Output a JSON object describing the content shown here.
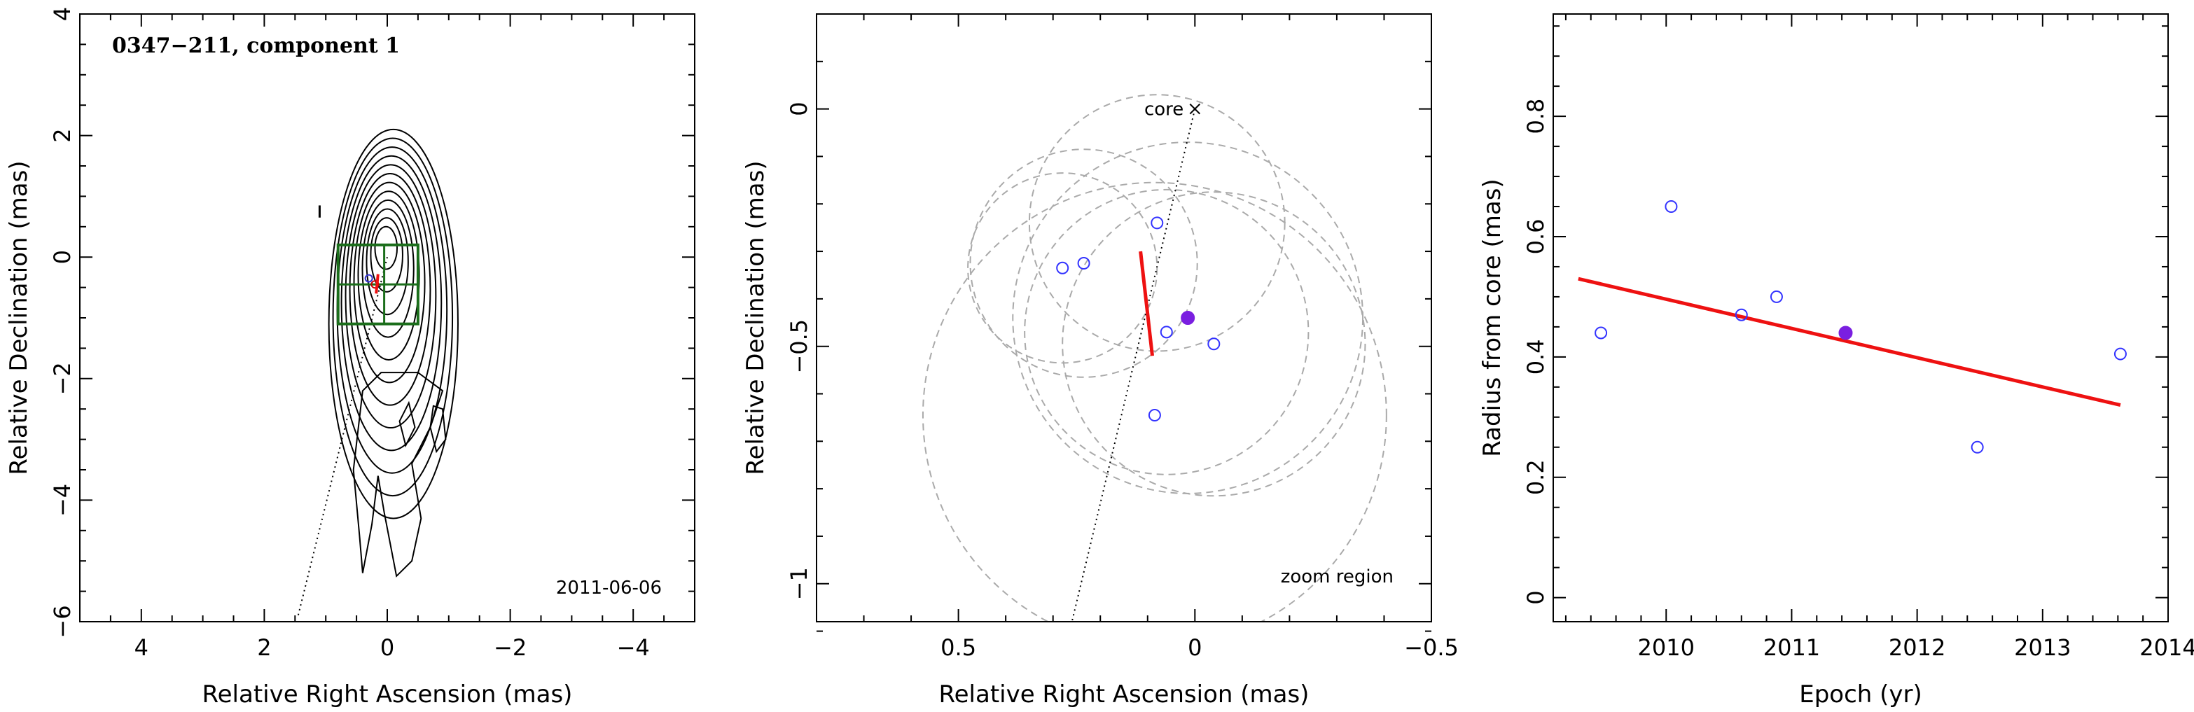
{
  "chart_data": [
    {
      "type": "contour",
      "title": "0347−211, component 1",
      "date": "2011-06-06",
      "xlabel": "Relative Right Ascension (mas)",
      "ylabel": "Relative Declination (mas)",
      "xlim": [
        5,
        -5
      ],
      "ylim": [
        -6,
        4
      ],
      "xticks": [
        "4",
        "2",
        "0",
        "−2",
        "−4"
      ],
      "yticks": [
        "−6",
        "−4",
        "−2",
        "0",
        "2",
        "4"
      ],
      "contour_levels": 12,
      "ridge_line": [
        [
          0,
          0
        ],
        [
          1.45,
          -5.9
        ]
      ],
      "zoom_box": {
        "x": [
          0.8,
          -0.5
        ],
        "y": [
          0.2,
          -1.1
        ]
      },
      "markers": [
        {
          "x": 0.2,
          "y": -0.45,
          "color": "#cc0000"
        },
        {
          "x": 0.3,
          "y": -0.35,
          "color": "#3333cc"
        }
      ]
    },
    {
      "type": "scatter",
      "xlabel": "Relative Right Ascension (mas)",
      "ylabel": "Relative Declination (mas)",
      "xlim": [
        0.8,
        -0.5
      ],
      "ylim": [
        -1.08,
        0.2
      ],
      "xticks": [
        "0.5",
        "0",
        "−0.5"
      ],
      "yticks": [
        "−1",
        "−0.5",
        "0"
      ],
      "core_label": "core",
      "core": {
        "x": 0,
        "y": 0
      },
      "region_label": "zoom region",
      "points": [
        {
          "x": 0.08,
          "y": -0.24,
          "filled": false
        },
        {
          "x": 0.28,
          "y": -0.335,
          "filled": false
        },
        {
          "x": 0.235,
          "y": -0.325,
          "filled": false
        },
        {
          "x": 0.06,
          "y": -0.47,
          "filled": false
        },
        {
          "x": -0.04,
          "y": -0.495,
          "filled": false
        },
        {
          "x": 0.085,
          "y": -0.645,
          "filled": false
        },
        {
          "x": 0.015,
          "y": -0.44,
          "filled": true
        }
      ],
      "circles": [
        {
          "x": 0.08,
          "y": -0.24,
          "r": 0.27
        },
        {
          "x": 0.28,
          "y": -0.335,
          "r": 0.2
        },
        {
          "x": 0.235,
          "y": -0.325,
          "r": 0.24
        },
        {
          "x": 0.06,
          "y": -0.47,
          "r": 0.3
        },
        {
          "x": -0.04,
          "y": -0.495,
          "r": 0.32
        },
        {
          "x": 0.085,
          "y": -0.645,
          "r": 0.49
        },
        {
          "x": 0.015,
          "y": -0.44,
          "r": 0.37
        }
      ],
      "velocity_vector": [
        [
          0.115,
          -0.3
        ],
        [
          0.09,
          -0.52
        ]
      ],
      "ridge_line": [
        [
          0,
          0
        ],
        [
          0.26,
          -1.08
        ]
      ]
    },
    {
      "type": "scatter",
      "xlabel": "Epoch (yr)",
      "ylabel": "Radius from core (mas)",
      "xlim": [
        2009.1,
        2014
      ],
      "ylim": [
        -0.04,
        0.97
      ],
      "xticks": [
        "2010",
        "2011",
        "2012",
        "2013",
        "2014"
      ],
      "yticks": [
        "0",
        "0.2",
        "0.4",
        "0.6",
        "0.8"
      ],
      "points": [
        {
          "x": 2009.48,
          "y": 0.44,
          "filled": false
        },
        {
          "x": 2010.04,
          "y": 0.65,
          "filled": false
        },
        {
          "x": 2010.6,
          "y": 0.47,
          "filled": false
        },
        {
          "x": 2010.88,
          "y": 0.5,
          "filled": false
        },
        {
          "x": 2011.43,
          "y": 0.44,
          "filled": true
        },
        {
          "x": 2012.48,
          "y": 0.25,
          "filled": false
        },
        {
          "x": 2013.62,
          "y": 0.405,
          "filled": false
        }
      ],
      "fit_line": [
        [
          2009.3,
          0.53
        ],
        [
          2013.62,
          0.32
        ]
      ]
    }
  ],
  "colors": {
    "point": "#3333ff",
    "point_filled": "#7a1fe0",
    "fit": "#ee1111",
    "zoom_box": "#1b6e1b",
    "dashed": "#aaaaaa"
  }
}
